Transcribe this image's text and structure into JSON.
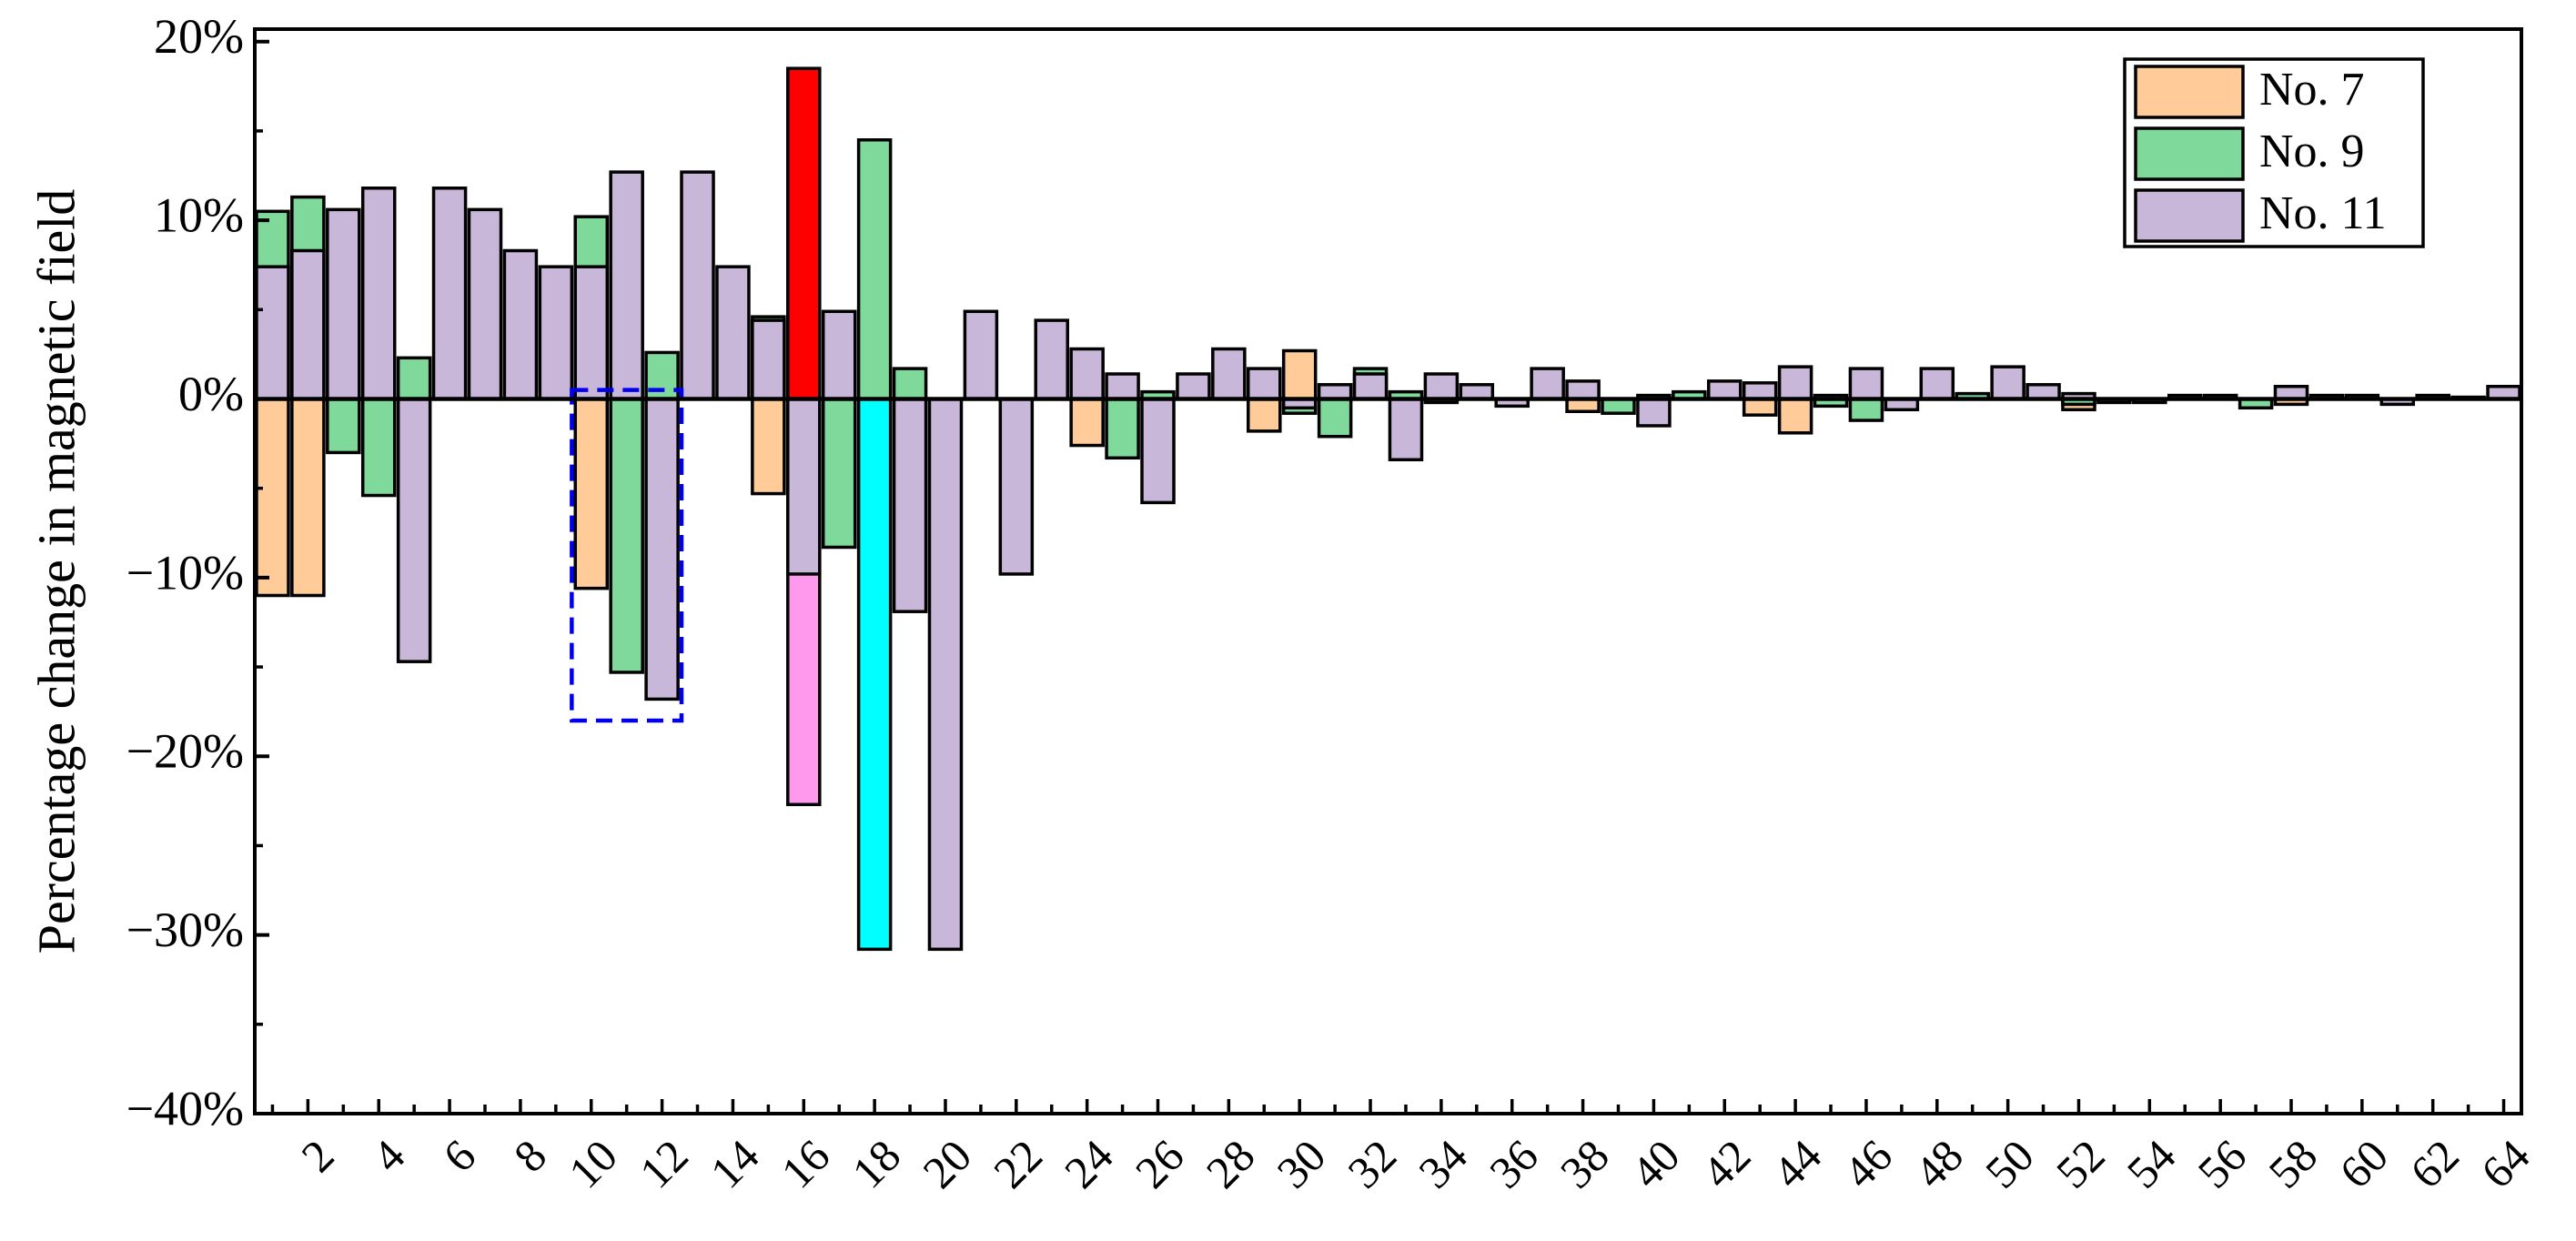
{
  "chart_data": {
    "type": "bar",
    "y_label": "Percentage change in magnetic field",
    "categories": [
      null,
      "2",
      null,
      "4",
      null,
      "6",
      null,
      "8",
      null,
      "10",
      null,
      "12",
      null,
      "14",
      null,
      "16",
      null,
      "18",
      null,
      "20",
      null,
      "22",
      null,
      "24",
      null,
      "26",
      null,
      "28",
      null,
      "30",
      null,
      "32",
      null,
      "34",
      null,
      "36",
      null,
      "38",
      null,
      "40",
      null,
      "42",
      null,
      "44",
      null,
      "46",
      null,
      "48",
      null,
      "50",
      null,
      "52",
      null,
      "54",
      null,
      "56",
      null,
      "58",
      null,
      "60",
      null,
      "62",
      null,
      "64"
    ],
    "series": [
      {
        "name": "No. 7",
        "color": "#ffcc99",
        "values": [
          -11,
          -11,
          null,
          null,
          null,
          null,
          null,
          null,
          null,
          -10.6,
          null,
          null,
          null,
          null,
          -5.3,
          18.5,
          null,
          -30.8,
          null,
          null,
          null,
          null,
          null,
          -2.6,
          null,
          null,
          null,
          null,
          -1.8,
          2.7,
          null,
          null,
          null,
          null,
          null,
          null,
          null,
          -0.7,
          null,
          null,
          null,
          null,
          -0.9,
          -1.9,
          null,
          null,
          null,
          null,
          null,
          null,
          null,
          -0.6,
          null,
          null,
          null,
          0.2,
          null,
          -0.3,
          null,
          0.2,
          null,
          0.2,
          null,
          null
        ]
      },
      {
        "name": "No. 9",
        "color": "#7fd99a",
        "values": [
          10.5,
          11.3,
          -3,
          -5.4,
          2.3,
          null,
          null,
          null,
          null,
          10.2,
          -15.3,
          2.6,
          null,
          null,
          4.6,
          -22.7,
          -8.3,
          14.5,
          1.7,
          null,
          null,
          null,
          null,
          null,
          -3.3,
          0.4,
          null,
          null,
          null,
          -0.8,
          -2.1,
          1.7,
          0.4,
          -0.2,
          null,
          null,
          null,
          null,
          -0.8,
          0.2,
          0.4,
          null,
          null,
          null,
          -0.4,
          -1.2,
          null,
          null,
          0.3,
          null,
          null,
          -0.3,
          null,
          null,
          null,
          null,
          -0.5,
          null,
          null,
          null,
          null,
          null,
          null,
          null
        ]
      },
      {
        "name": "No. 11",
        "color": "#c9b7d9",
        "values": [
          7.4,
          8.3,
          10.6,
          11.8,
          -14.7,
          11.8,
          10.6,
          8.3,
          7.4,
          7.4,
          12.7,
          -16.8,
          12.7,
          7.4,
          4.4,
          -9.8,
          4.9,
          null,
          -11.9,
          -30.8,
          4.9,
          -9.8,
          4.4,
          2.8,
          1.4,
          -5.8,
          1.4,
          2.8,
          1.7,
          -0.5,
          0.8,
          1.4,
          -3.4,
          1.4,
          0.8,
          -0.4,
          1.7,
          1,
          null,
          -1.5,
          null,
          1,
          0.9,
          1.8,
          0.2,
          1.7,
          -0.6,
          1.7,
          null,
          1.8,
          0.8,
          0.3,
          -0.2,
          -0.2,
          0.2,
          null,
          null,
          0.7,
          0.2,
          null,
          -0.3,
          null,
          0.1,
          0.7
        ]
      }
    ],
    "highlights": [
      {
        "series": 0,
        "index": 15,
        "color": "#ff0000"
      },
      {
        "series": 1,
        "index": 15,
        "color": "#ff99ee"
      },
      {
        "series": 0,
        "index": 17,
        "color": "#00ffff"
      }
    ],
    "ylim": [
      -40,
      20.7
    ],
    "yticks": [
      {
        "value": -40,
        "label": "−40%"
      },
      {
        "value": -30,
        "label": "−30%"
      },
      {
        "value": -20,
        "label": "−20%"
      },
      {
        "value": -10,
        "label": "−10%"
      },
      {
        "value": 0,
        "label": "0%"
      },
      {
        "value": 10,
        "label": "10%"
      },
      {
        "value": 20,
        "label": "20%"
      }
    ],
    "yminor": [
      -35,
      -25,
      -15,
      -5,
      5,
      15
    ],
    "legend": "upper right"
  }
}
